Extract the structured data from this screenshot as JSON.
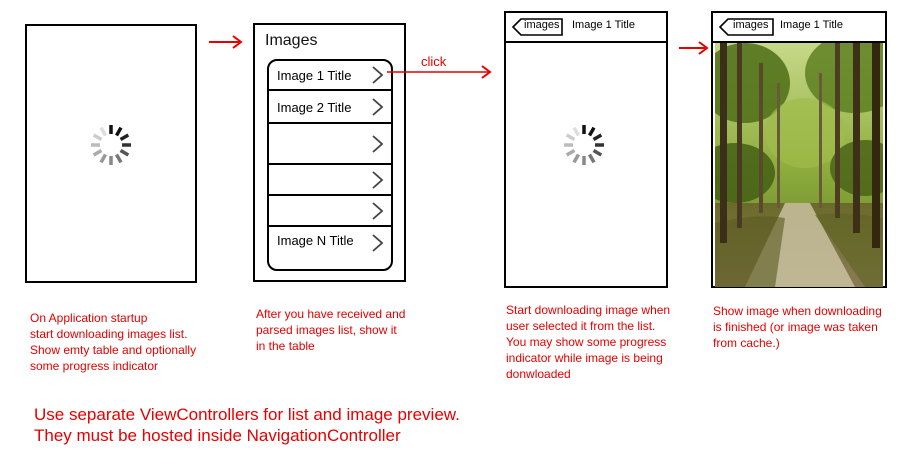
{
  "screen2": {
    "title": "Images",
    "rows": [
      "Image 1 Title",
      "Image 2 Title",
      "",
      "",
      "",
      "Image N Title"
    ]
  },
  "screen3": {
    "back_label": "images",
    "nav_title": "Image 1 Title"
  },
  "screen4": {
    "back_label": "images",
    "nav_title": "Image 1 Title"
  },
  "click_label": "click",
  "captions": {
    "c1": "On Application startup\nstart downloading images list.\nShow emty table and optionally\nsome progress indicator",
    "c2": "After you have received and\nparsed images list, show it\nin the table",
    "c3": "Start downloading image when\nuser selected it from the list.\nYou may show some progress\nindicator while image is being\ndonwloaded",
    "c4": "Show image when downloading\nis finished (or image was taken\nfrom cache.)"
  },
  "note": "Use separate ViewControllers for list and image preview.\nThey must be hosted inside NavigationController",
  "colors": {
    "accent": "#e60000",
    "stroke": "#000000"
  }
}
